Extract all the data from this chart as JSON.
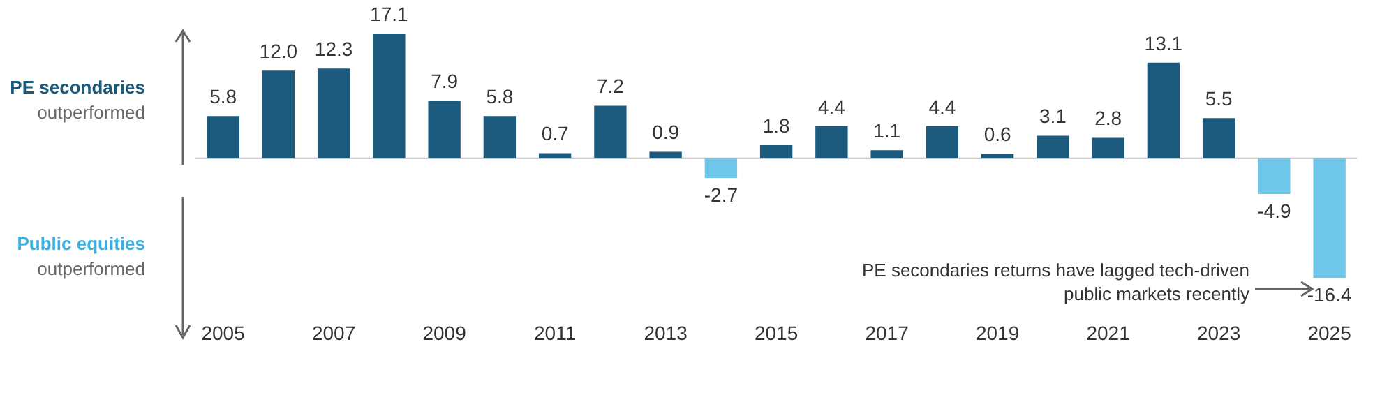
{
  "chart_data": {
    "type": "bar",
    "categories": [
      "2005",
      null,
      "2007",
      null,
      "2009",
      null,
      "2011",
      null,
      "2013",
      null,
      "2015",
      null,
      "2017",
      null,
      "2019",
      null,
      "2021",
      null,
      "2023",
      null,
      "2025"
    ],
    "values": [
      5.8,
      12.0,
      12.3,
      17.1,
      7.9,
      5.8,
      0.7,
      7.2,
      0.9,
      -2.7,
      1.8,
      4.4,
      1.1,
      4.4,
      0.6,
      3.1,
      2.8,
      13.1,
      5.5,
      -4.9,
      -16.4
    ],
    "value_labels": [
      "5.8",
      "12.0",
      "12.3",
      "17.1",
      "7.9",
      "5.8",
      "0.7",
      "7.2",
      "0.9",
      "-2.7",
      "1.8",
      "4.4",
      "1.1",
      "4.4",
      "0.6",
      "3.1",
      "2.8",
      "13.1",
      "5.5",
      "-4.9",
      "-16.4"
    ],
    "colors": [
      "#1b5a7d",
      "#1b5a7d",
      "#1b5a7d",
      "#1b5a7d",
      "#1b5a7d",
      "#1b5a7d",
      "#1b5a7d",
      "#1b5a7d",
      "#1b5a7d",
      "#6ec6e8",
      "#1b5a7d",
      "#1b5a7d",
      "#1b5a7d",
      "#1b5a7d",
      "#1b5a7d",
      "#1b5a7d",
      "#1b5a7d",
      "#1b5a7d",
      "#1b5a7d",
      "#6ec6e8",
      "#6ec6e8"
    ],
    "grid": false,
    "legend": false,
    "tick_labels": "x",
    "annotations": [
      "PE secondaries",
      "outperformed",
      "Public equities",
      "outperformed",
      "PE secondaries returns have lagged tech-driven public markets recently"
    ]
  }
}
